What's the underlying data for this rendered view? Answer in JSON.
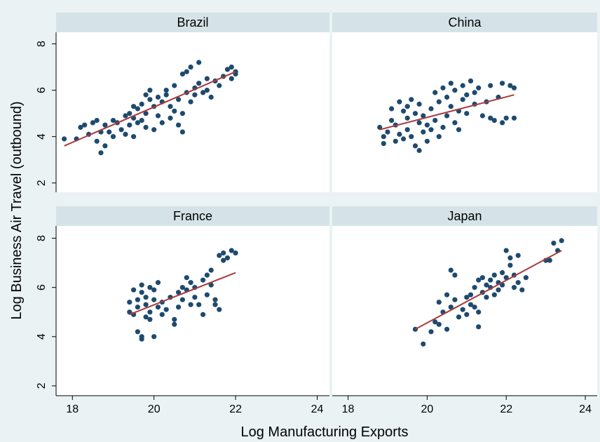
{
  "chart_data": {
    "type": "scatter",
    "figure": {
      "ylabel": "Log Business Air Travel (outbound)",
      "xlabel": "Log Manufacturing Exports"
    },
    "xlim": [
      17.6,
      24.3
    ],
    "ylim": [
      1.6,
      8.5
    ],
    "xticks": [
      "18",
      "20",
      "22",
      "24"
    ],
    "yticks": [
      "2",
      "4",
      "6",
      "8"
    ],
    "grid": false,
    "legend": "none",
    "colors": {
      "background": "#eaf2f3",
      "panel": "#ffffff",
      "strip": "#d5e3e8",
      "points": "#1e4a6e",
      "fit_line": "#a83c3c"
    },
    "panels": [
      {
        "title": "Brazil",
        "fit": {
          "x": [
            17.8,
            22.0
          ],
          "y": [
            3.6,
            6.8
          ]
        },
        "points": [
          [
            17.8,
            3.9
          ],
          [
            18.1,
            3.9
          ],
          [
            18.2,
            4.4
          ],
          [
            18.3,
            4.5
          ],
          [
            18.4,
            4.1
          ],
          [
            18.5,
            4.6
          ],
          [
            18.6,
            4.7
          ],
          [
            18.6,
            3.8
          ],
          [
            18.7,
            3.3
          ],
          [
            18.7,
            4.2
          ],
          [
            18.8,
            3.6
          ],
          [
            18.8,
            4.5
          ],
          [
            18.9,
            4.2
          ],
          [
            19.0,
            4.7
          ],
          [
            19.0,
            4.0
          ],
          [
            19.1,
            4.6
          ],
          [
            19.2,
            4.3
          ],
          [
            19.3,
            4.9
          ],
          [
            19.3,
            4.1
          ],
          [
            19.4,
            5.0
          ],
          [
            19.4,
            4.5
          ],
          [
            19.5,
            4.8
          ],
          [
            19.5,
            5.3
          ],
          [
            19.5,
            4.0
          ],
          [
            19.6,
            4.6
          ],
          [
            19.6,
            5.2
          ],
          [
            19.7,
            4.7
          ],
          [
            19.7,
            5.4
          ],
          [
            19.8,
            5.0
          ],
          [
            19.8,
            5.8
          ],
          [
            19.8,
            4.4
          ],
          [
            19.9,
            5.6
          ],
          [
            19.9,
            6.0
          ],
          [
            20.0,
            5.3
          ],
          [
            20.0,
            4.3
          ],
          [
            20.1,
            5.7
          ],
          [
            20.1,
            4.9
          ],
          [
            20.2,
            5.5
          ],
          [
            20.2,
            4.6
          ],
          [
            20.3,
            6.0
          ],
          [
            20.3,
            5.8
          ],
          [
            20.4,
            4.8
          ],
          [
            20.4,
            5.3
          ],
          [
            20.5,
            5.1
          ],
          [
            20.5,
            6.2
          ],
          [
            20.6,
            4.5
          ],
          [
            20.6,
            5.6
          ],
          [
            20.7,
            6.7
          ],
          [
            20.7,
            4.2
          ],
          [
            20.7,
            5.0
          ],
          [
            20.8,
            5.9
          ],
          [
            20.8,
            6.8
          ],
          [
            20.9,
            5.5
          ],
          [
            20.9,
            7.0
          ],
          [
            21.0,
            6.1
          ],
          [
            21.0,
            5.8
          ],
          [
            21.1,
            7.2
          ],
          [
            21.1,
            6.3
          ],
          [
            21.2,
            5.9
          ],
          [
            21.3,
            6.0
          ],
          [
            21.3,
            6.5
          ],
          [
            21.4,
            5.7
          ],
          [
            21.5,
            6.4
          ],
          [
            21.6,
            6.2
          ],
          [
            21.7,
            6.6
          ],
          [
            21.8,
            6.9
          ],
          [
            21.9,
            7.0
          ],
          [
            21.9,
            6.5
          ],
          [
            22.0,
            6.7
          ],
          [
            22.0,
            6.8
          ]
        ]
      },
      {
        "title": "China",
        "fit": {
          "x": [
            18.8,
            22.2
          ],
          "y": [
            4.3,
            5.8
          ]
        },
        "points": [
          [
            18.8,
            4.4
          ],
          [
            18.9,
            4.0
          ],
          [
            18.9,
            3.7
          ],
          [
            19.0,
            4.2
          ],
          [
            19.1,
            5.2
          ],
          [
            19.1,
            4.7
          ],
          [
            19.2,
            3.8
          ],
          [
            19.2,
            4.5
          ],
          [
            19.3,
            5.5
          ],
          [
            19.3,
            4.1
          ],
          [
            19.4,
            5.1
          ],
          [
            19.4,
            3.9
          ],
          [
            19.5,
            5.3
          ],
          [
            19.5,
            4.8
          ],
          [
            19.5,
            4.3
          ],
          [
            19.6,
            5.6
          ],
          [
            19.6,
            4.0
          ],
          [
            19.7,
            5.0
          ],
          [
            19.7,
            3.6
          ],
          [
            19.8,
            4.6
          ],
          [
            19.8,
            5.4
          ],
          [
            19.8,
            3.4
          ],
          [
            19.9,
            4.2
          ],
          [
            19.9,
            4.9
          ],
          [
            20.0,
            4.5
          ],
          [
            20.0,
            3.8
          ],
          [
            20.1,
            5.2
          ],
          [
            20.1,
            4.3
          ],
          [
            20.2,
            5.9
          ],
          [
            20.2,
            4.7
          ],
          [
            20.3,
            5.5
          ],
          [
            20.3,
            4.0
          ],
          [
            20.4,
            6.1
          ],
          [
            20.4,
            4.4
          ],
          [
            20.5,
            5.7
          ],
          [
            20.5,
            4.9
          ],
          [
            20.6,
            6.3
          ],
          [
            20.6,
            5.3
          ],
          [
            20.7,
            4.6
          ],
          [
            20.7,
            6.0
          ],
          [
            20.8,
            5.1
          ],
          [
            20.8,
            4.3
          ],
          [
            20.9,
            6.2
          ],
          [
            20.9,
            5.6
          ],
          [
            21.0,
            5.8
          ],
          [
            21.0,
            5.0
          ],
          [
            21.1,
            6.4
          ],
          [
            21.2,
            5.4
          ],
          [
            21.2,
            5.9
          ],
          [
            21.3,
            6.1
          ],
          [
            21.4,
            4.9
          ],
          [
            21.5,
            5.5
          ],
          [
            21.6,
            6.2
          ],
          [
            21.6,
            4.8
          ],
          [
            21.7,
            4.7
          ],
          [
            21.8,
            5.7
          ],
          [
            21.9,
            4.6
          ],
          [
            21.9,
            6.3
          ],
          [
            22.0,
            4.8
          ],
          [
            22.1,
            6.2
          ],
          [
            22.2,
            6.1
          ],
          [
            22.2,
            4.8
          ]
        ]
      },
      {
        "title": "France",
        "fit": {
          "x": [
            19.4,
            22.0
          ],
          "y": [
            4.9,
            6.6
          ]
        },
        "points": [
          [
            19.4,
            5.0
          ],
          [
            19.4,
            5.4
          ],
          [
            19.5,
            5.9
          ],
          [
            19.5,
            4.9
          ],
          [
            19.6,
            5.5
          ],
          [
            19.6,
            4.2
          ],
          [
            19.6,
            5.2
          ],
          [
            19.7,
            5.8
          ],
          [
            19.7,
            4.0
          ],
          [
            19.7,
            6.1
          ],
          [
            19.7,
            3.9
          ],
          [
            19.8,
            5.6
          ],
          [
            19.8,
            4.8
          ],
          [
            19.8,
            5.3
          ],
          [
            19.9,
            6.0
          ],
          [
            19.9,
            4.7
          ],
          [
            19.9,
            5.0
          ],
          [
            20.0,
            5.9
          ],
          [
            20.0,
            5.5
          ],
          [
            20.0,
            4.0
          ],
          [
            20.1,
            5.2
          ],
          [
            20.1,
            6.2
          ],
          [
            20.2,
            5.4
          ],
          [
            20.2,
            4.9
          ],
          [
            20.3,
            5.1
          ],
          [
            20.4,
            5.6
          ],
          [
            20.5,
            4.7
          ],
          [
            20.5,
            4.5
          ],
          [
            20.6,
            5.8
          ],
          [
            20.6,
            5.2
          ],
          [
            20.7,
            6.0
          ],
          [
            20.7,
            5.5
          ],
          [
            20.8,
            6.4
          ],
          [
            20.8,
            5.9
          ],
          [
            20.9,
            5.3
          ],
          [
            20.9,
            6.2
          ],
          [
            21.0,
            5.6
          ],
          [
            21.0,
            6.0
          ],
          [
            21.1,
            5.3
          ],
          [
            21.2,
            6.3
          ],
          [
            21.2,
            4.9
          ],
          [
            21.3,
            5.7
          ],
          [
            21.3,
            6.5
          ],
          [
            21.4,
            6.7
          ],
          [
            21.4,
            6.1
          ],
          [
            21.5,
            5.3
          ],
          [
            21.5,
            5.5
          ],
          [
            21.6,
            5.1
          ],
          [
            21.6,
            7.3
          ],
          [
            21.7,
            7.1
          ],
          [
            21.7,
            7.4
          ],
          [
            21.8,
            7.2
          ],
          [
            21.9,
            7.5
          ],
          [
            22.0,
            7.4
          ]
        ]
      },
      {
        "title": "Japan",
        "fit": {
          "x": [
            19.7,
            23.4
          ],
          "y": [
            4.3,
            7.5
          ]
        },
        "points": [
          [
            19.7,
            4.3
          ],
          [
            19.9,
            3.7
          ],
          [
            20.1,
            4.2
          ],
          [
            20.2,
            4.6
          ],
          [
            20.3,
            5.4
          ],
          [
            20.3,
            4.5
          ],
          [
            20.4,
            5.0
          ],
          [
            20.5,
            5.7
          ],
          [
            20.5,
            4.3
          ],
          [
            20.6,
            5.2
          ],
          [
            20.6,
            6.7
          ],
          [
            20.7,
            6.5
          ],
          [
            20.7,
            5.5
          ],
          [
            20.8,
            4.8
          ],
          [
            20.9,
            5.1
          ],
          [
            21.0,
            5.6
          ],
          [
            21.0,
            4.9
          ],
          [
            21.1,
            5.3
          ],
          [
            21.1,
            5.7
          ],
          [
            21.2,
            6.0
          ],
          [
            21.2,
            5.2
          ],
          [
            21.3,
            6.3
          ],
          [
            21.3,
            4.4
          ],
          [
            21.3,
            5.0
          ],
          [
            21.4,
            5.8
          ],
          [
            21.4,
            6.4
          ],
          [
            21.5,
            6.1
          ],
          [
            21.5,
            5.6
          ],
          [
            21.6,
            6.3
          ],
          [
            21.6,
            6.0
          ],
          [
            21.7,
            5.7
          ],
          [
            21.7,
            6.5
          ],
          [
            21.8,
            6.2
          ],
          [
            21.8,
            5.9
          ],
          [
            21.9,
            6.1
          ],
          [
            21.9,
            6.6
          ],
          [
            22.0,
            6.4
          ],
          [
            22.0,
            7.5
          ],
          [
            22.1,
            6.9
          ],
          [
            22.1,
            7.2
          ],
          [
            22.2,
            6.5
          ],
          [
            22.2,
            6.0
          ],
          [
            22.3,
            7.3
          ],
          [
            22.3,
            6.2
          ],
          [
            22.4,
            5.9
          ],
          [
            22.5,
            6.4
          ],
          [
            23.0,
            7.1
          ],
          [
            23.1,
            7.1
          ],
          [
            23.2,
            7.8
          ],
          [
            23.3,
            7.5
          ],
          [
            23.4,
            7.9
          ]
        ]
      }
    ]
  }
}
